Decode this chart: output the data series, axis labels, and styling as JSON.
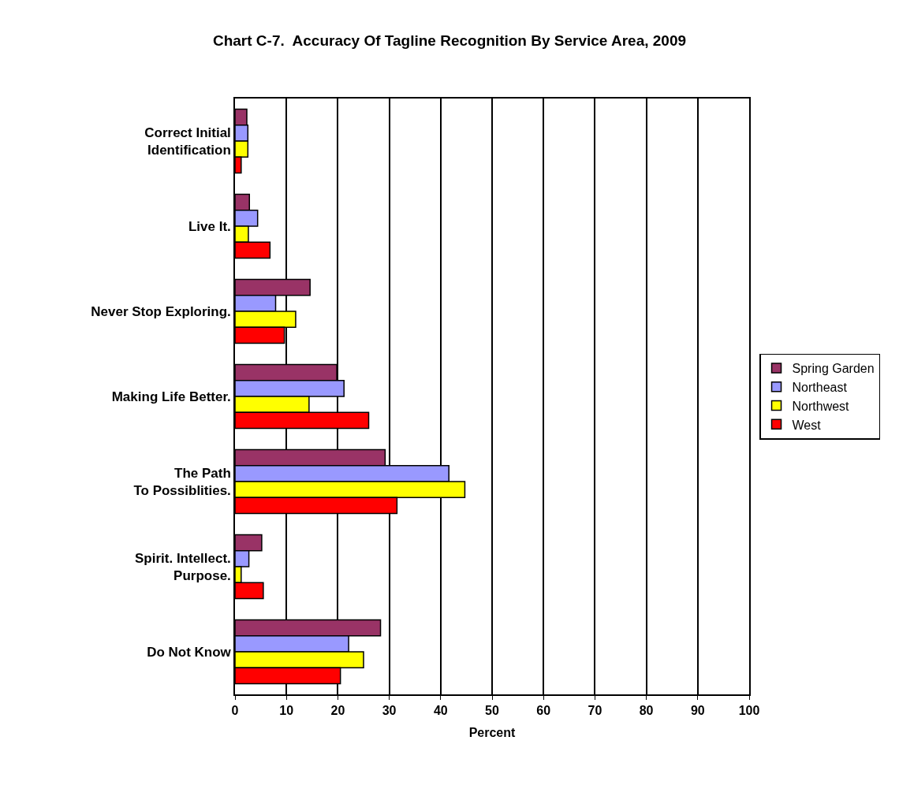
{
  "chart_data": {
    "type": "bar",
    "orientation": "horizontal",
    "title": "Chart C-7.  Accuracy Of Tagline Recognition By Service Area, 2009",
    "xlabel": "Percent",
    "categories": [
      "Correct Initial Identification",
      "Live It.",
      "Never Stop Exploring.",
      "Making Life Better.",
      "The Path To Possiblities.",
      "Spirit. Intellect. Purpose.",
      "Do Not Know"
    ],
    "series": [
      {
        "name": "Spring Garden",
        "color": "#993366",
        "values": [
          2.3,
          2.8,
          14.6,
          19.8,
          29.2,
          5.2,
          28.3
        ]
      },
      {
        "name": "Northeast",
        "color": "#9999ff",
        "values": [
          2.5,
          4.4,
          7.9,
          21.2,
          41.6,
          2.7,
          22.1
        ]
      },
      {
        "name": "Northwest",
        "color": "#ffff00",
        "values": [
          2.5,
          2.6,
          11.8,
          14.4,
          44.7,
          1.2,
          25.0
        ]
      },
      {
        "name": "West",
        "color": "#ff0000",
        "values": [
          1.2,
          6.8,
          9.6,
          26.0,
          31.5,
          5.5,
          20.5
        ]
      }
    ],
    "xlim": [
      0,
      100
    ],
    "xticks": [
      0,
      10,
      20,
      30,
      40,
      50,
      60,
      70,
      80,
      90,
      100
    ],
    "grid": "x",
    "legend": "right"
  }
}
